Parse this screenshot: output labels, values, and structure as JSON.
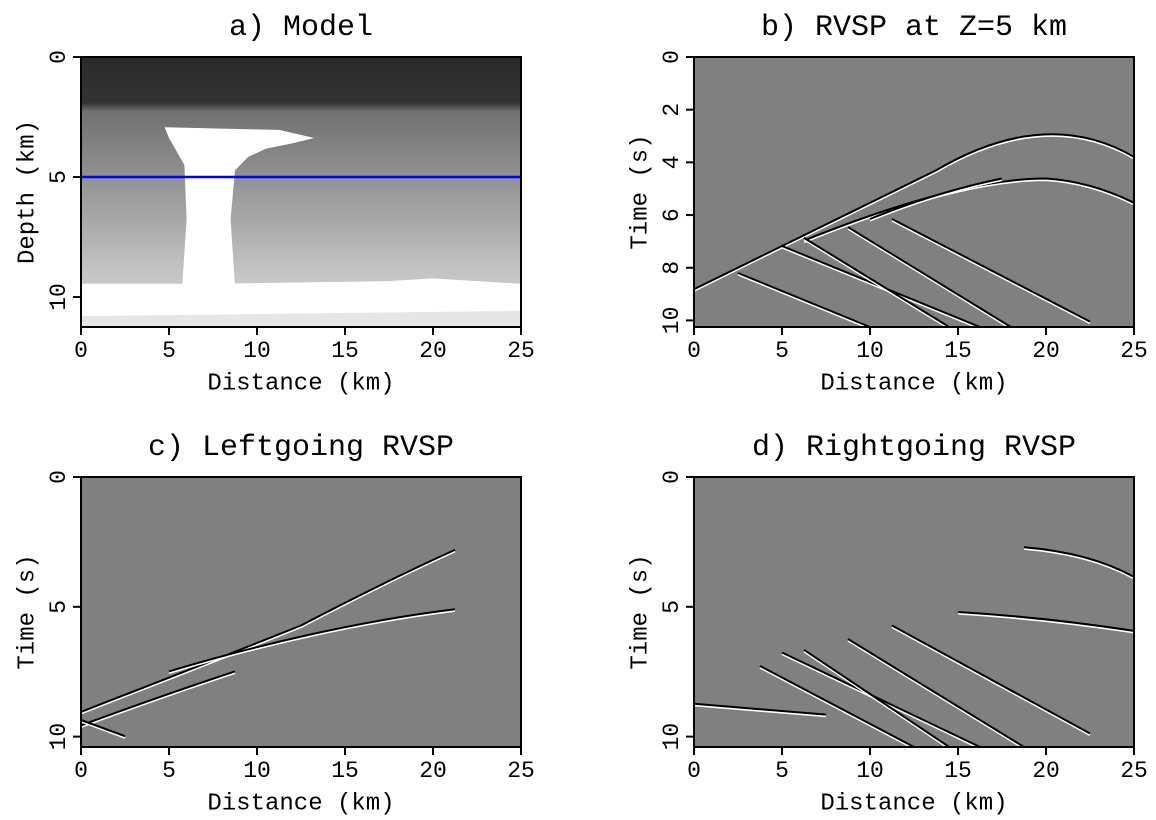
{
  "chart_data": [
    {
      "type": "image",
      "title": "a) Model",
      "xlabel": "Distance (km)",
      "ylabel": "Depth (km)",
      "xlim": [
        0,
        25
      ],
      "xticks": [
        0,
        5,
        10,
        15,
        20,
        25
      ],
      "ylim": [
        0,
        11.25
      ],
      "yticks": [
        0,
        5,
        10
      ],
      "hline": {
        "value": 5,
        "color": "#0000ff"
      }
    },
    {
      "type": "image",
      "title": "b) RVSP at Z=5 km",
      "xlabel": "Distance (km)",
      "ylabel": "Time (s)",
      "xlim": [
        0,
        25
      ],
      "xticks": [
        0,
        5,
        10,
        15,
        20,
        25
      ],
      "ylim": [
        0,
        10.25
      ],
      "yticks": [
        0,
        2,
        4,
        6,
        8,
        10
      ]
    },
    {
      "type": "image",
      "title": "c) Leftgoing RVSP",
      "xlabel": "Distance (km)",
      "ylabel": "Time (s)",
      "xlim": [
        0,
        25
      ],
      "xticks": [
        0,
        5,
        10,
        15,
        20,
        25
      ],
      "ylim": [
        0,
        10.4
      ],
      "yticks": [
        0,
        5,
        10
      ]
    },
    {
      "type": "image",
      "title": "d) Rightgoing RVSP",
      "xlabel": "Distance (km)",
      "ylabel": "Time (s)",
      "xlim": [
        0,
        25
      ],
      "xticks": [
        0,
        5,
        10,
        15,
        20,
        25
      ],
      "ylim": [
        0,
        10.4
      ],
      "yticks": [
        0,
        5,
        10
      ]
    }
  ]
}
